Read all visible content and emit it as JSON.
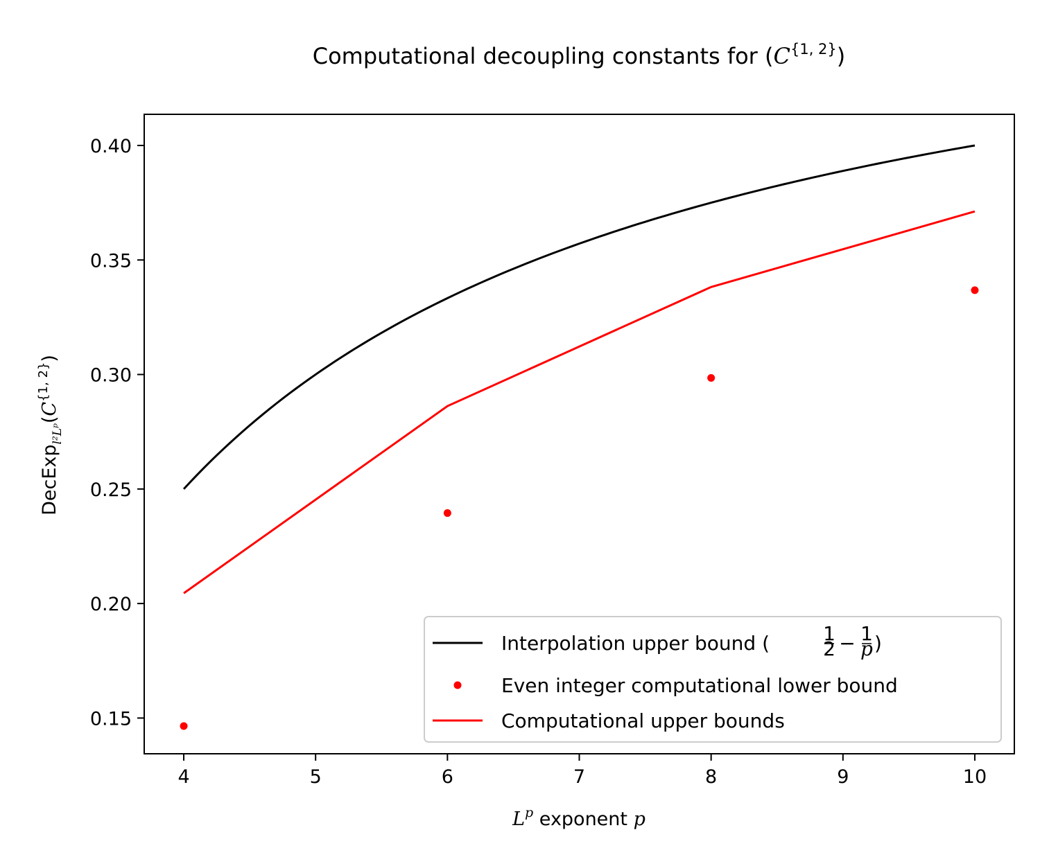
{
  "chart_data": {
    "type": "line",
    "title": {
      "prefix": "Computational decoupling constants for (",
      "base": "C",
      "sup": "{1, 2}",
      "suffix": ")"
    },
    "xlabel": {
      "base": "L",
      "sup": "p",
      "rest": " exponent ",
      "var": "p"
    },
    "ylabel": {
      "prefix": "DecExp",
      "sub": "l²Lᵖ",
      "paren_open": "(",
      "base": "C",
      "sup": "{1, 2}",
      "paren_close": ")"
    },
    "xlim": [
      3.7,
      10.3
    ],
    "ylim": [
      0.1344,
      0.4136
    ],
    "xticks": [
      4,
      5,
      6,
      7,
      8,
      9,
      10
    ],
    "xtick_labels": [
      "4",
      "5",
      "6",
      "7",
      "8",
      "9",
      "10"
    ],
    "yticks": [
      0.15,
      0.2,
      0.25,
      0.3,
      0.35,
      0.4
    ],
    "ytick_labels": [
      "0.15",
      "0.20",
      "0.25",
      "0.30",
      "0.35",
      "0.40"
    ],
    "legend_position": "lower-right",
    "series": [
      {
        "name": "Interpolation upper bound",
        "name_math": {
          "open": "(",
          "n1": "1",
          "d1": "2",
          "minus": "−",
          "n2": "1",
          "d2": "p",
          "close": ")"
        },
        "style": "line",
        "color": "#000000",
        "formula": "1/2 - 1/p",
        "x_range": [
          4,
          10
        ]
      },
      {
        "name": "Even integer computational lower bound",
        "style": "points",
        "color": "#ff0000",
        "x": [
          4,
          6,
          8,
          10
        ],
        "y": [
          0.1465,
          0.2395,
          0.2985,
          0.3368
        ]
      },
      {
        "name": "Computational upper bounds",
        "style": "line",
        "color": "#ff0000",
        "x": [
          4,
          6,
          8,
          10
        ],
        "y": [
          0.2045,
          0.2862,
          0.3382,
          0.3712
        ]
      }
    ]
  }
}
